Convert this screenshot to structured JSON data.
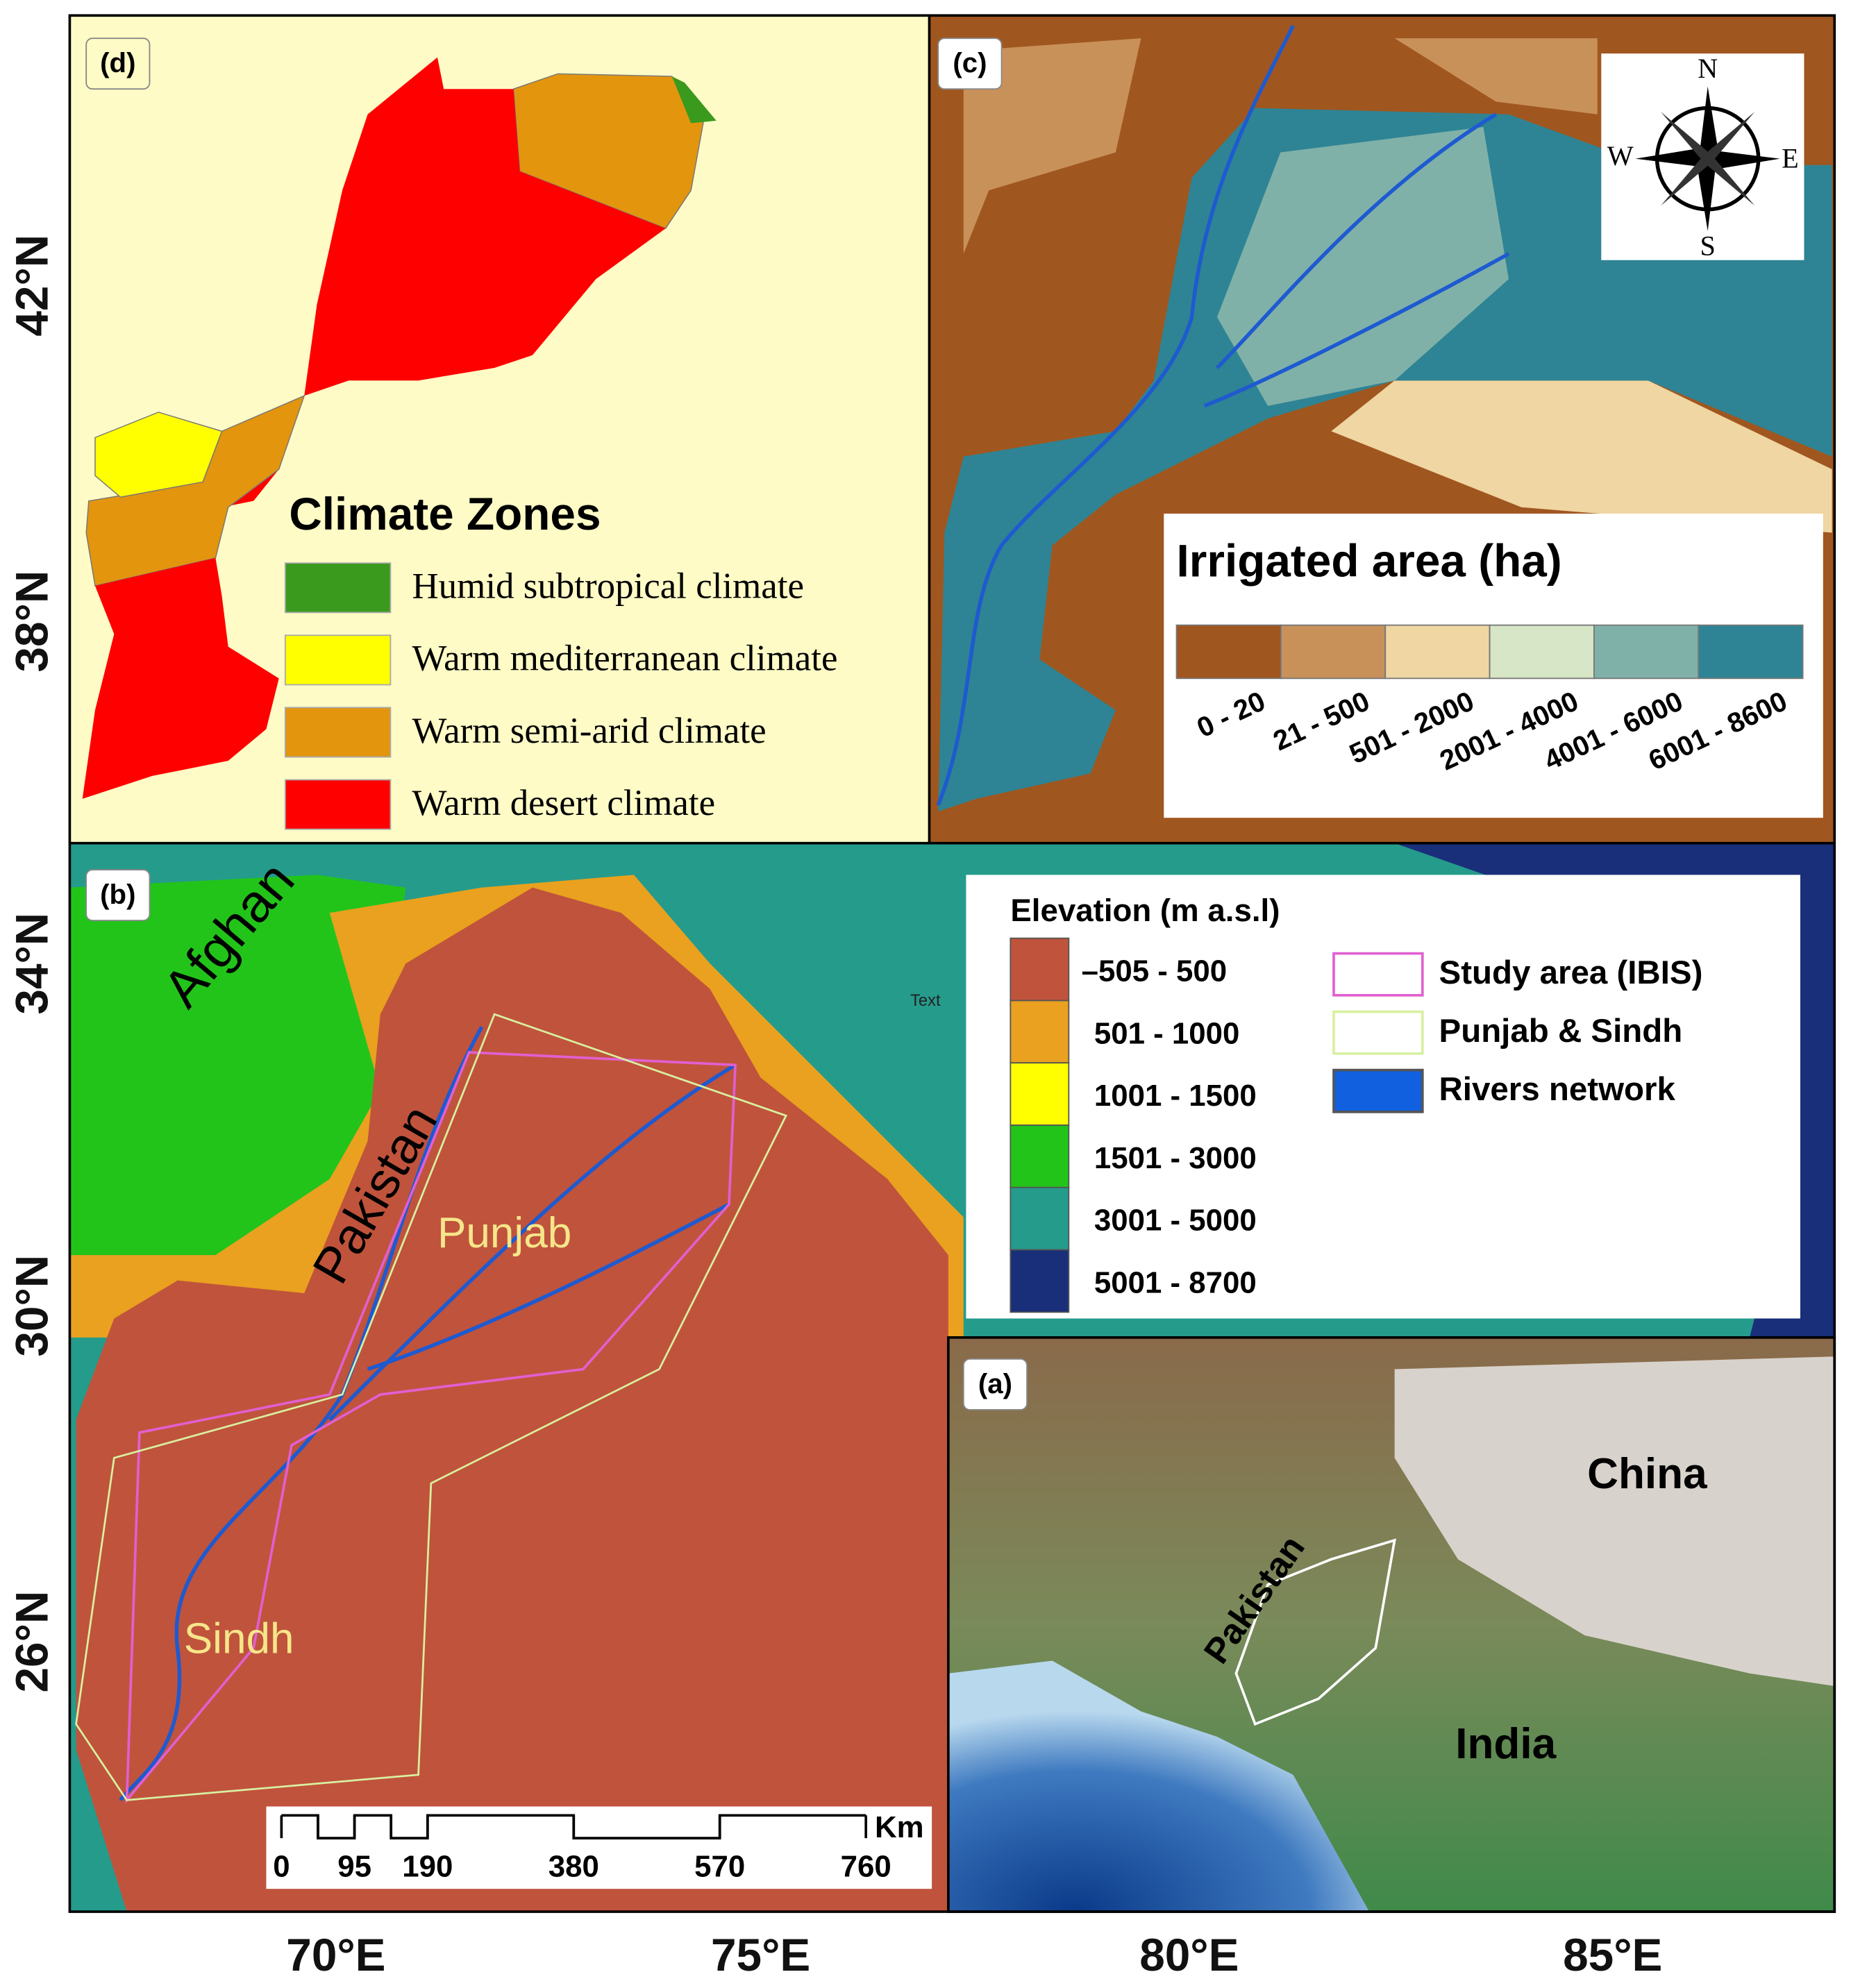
{
  "axes": {
    "latitude_labels": [
      "42°N",
      "38°N",
      "34°N",
      "30°N",
      "26°N"
    ],
    "longitude_labels": [
      "70°E",
      "75°E",
      "80°E",
      "85°E"
    ]
  },
  "panel_d": {
    "label": "(d)",
    "legend_title": "Climate Zones",
    "zones": [
      {
        "name": "Humid subtropical climate",
        "color": "#3a9a1e"
      },
      {
        "name": "Warm mediterranean climate",
        "color": "#ffff00"
      },
      {
        "name": "Warm semi-arid climate",
        "color": "#e3950e"
      },
      {
        "name": "Warm desert climate",
        "color": "#ff0000"
      }
    ]
  },
  "panel_c": {
    "label": "(c)",
    "legend_title": "Irrigated area (ha)",
    "classes": [
      {
        "label": "0 - 20",
        "color": "#a0561f"
      },
      {
        "label": "21 - 500",
        "color": "#c8915a"
      },
      {
        "label": "501 - 2000",
        "color": "#efd6a2"
      },
      {
        "label": "2001  - 4000",
        "color": "#d6e6c6"
      },
      {
        "label": "4001  - 6000",
        "color": "#80b1a9"
      },
      {
        "label": "6001  - 8600",
        "color": "#2e8494"
      }
    ],
    "compass": {
      "north": "N",
      "east": "E",
      "south": "S",
      "west": "W"
    }
  },
  "panel_b": {
    "label": "(b)",
    "legend_title": "Elevation (m a.s.l)",
    "classes": [
      {
        "label": "–505 - 500",
        "color": "#c0533c"
      },
      {
        "label": "501 - 1000",
        "color": "#e9a11f"
      },
      {
        "label": "1001 - 1500",
        "color": "#ffff00"
      },
      {
        "label": "1501 - 3000",
        "color": "#22c41a"
      },
      {
        "label": "3001 - 5000",
        "color": "#259b8c"
      },
      {
        "label": "5001 - 8700",
        "color": "#1a2f7a"
      }
    ],
    "layers": [
      {
        "name": "Study area (IBIS)",
        "color": "#e060d0"
      },
      {
        "name": "Punjab & Sindh",
        "color": "#d8f0a0"
      },
      {
        "name": "Rivers network",
        "color": "#1060e0"
      }
    ],
    "place_labels": {
      "afghanistan": "Afghan",
      "pakistan": "Pakistan",
      "punjab": "Punjab",
      "sindh": "Sindh",
      "text": "Text"
    },
    "scale_bar": {
      "unit": "Km",
      "ticks": [
        0,
        95,
        190,
        380,
        570,
        760
      ]
    }
  },
  "panel_a": {
    "label": "(a)",
    "place_labels": {
      "china": "China",
      "pakistan": "Pakistan",
      "india": "India"
    }
  }
}
